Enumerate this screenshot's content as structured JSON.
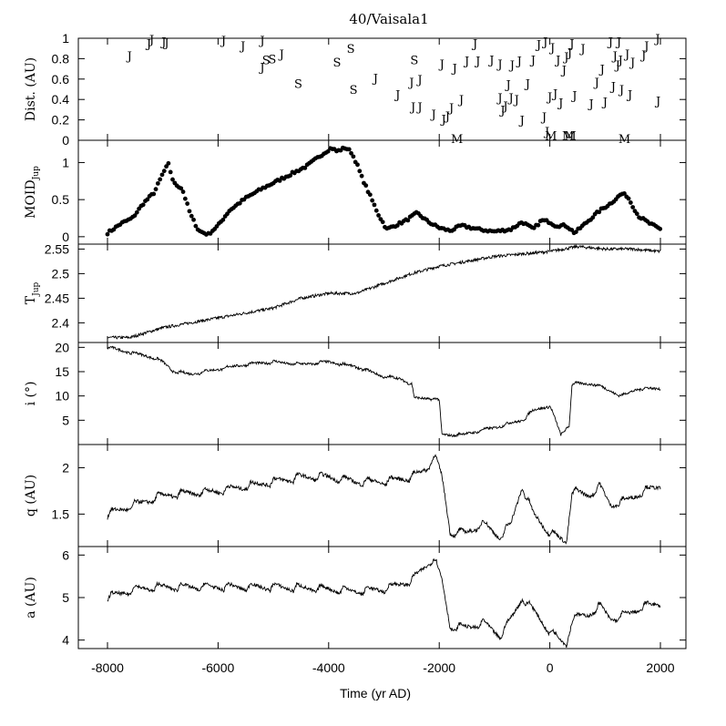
{
  "figure": {
    "title": "40/Vaisala1",
    "xlabel": "Time (yr AD)",
    "xticks": [
      -8000,
      -6000,
      -4000,
      -2000,
      0,
      2000
    ]
  },
  "chart_data": [
    {
      "type": "scatter",
      "name": "encounters",
      "ylabel": "Dist. (AU)",
      "ylim": [
        0,
        1
      ],
      "yticks": [
        0,
        0.2,
        0.4,
        0.6,
        0.8,
        1
      ],
      "xlim": [
        -8000,
        2000
      ],
      "points": [
        {
          "x": -7600,
          "y": 0.83,
          "label": "J"
        },
        {
          "x": -7250,
          "y": 0.95,
          "label": "J"
        },
        {
          "x": -7200,
          "y": 0.99,
          "label": "J"
        },
        {
          "x": -6980,
          "y": 0.97,
          "label": "J"
        },
        {
          "x": -6930,
          "y": 0.96,
          "label": "J"
        },
        {
          "x": -5900,
          "y": 0.98,
          "label": "J"
        },
        {
          "x": -5550,
          "y": 0.93,
          "label": "J"
        },
        {
          "x": -5200,
          "y": 0.98,
          "label": "J"
        },
        {
          "x": -5200,
          "y": 0.72,
          "label": "J"
        },
        {
          "x": -5130,
          "y": 0.79,
          "label": "S"
        },
        {
          "x": -5020,
          "y": 0.8,
          "label": "S"
        },
        {
          "x": -4850,
          "y": 0.85,
          "label": "J"
        },
        {
          "x": -4550,
          "y": 0.56,
          "label": "S"
        },
        {
          "x": -3850,
          "y": 0.77,
          "label": "S"
        },
        {
          "x": -3600,
          "y": 0.9,
          "label": "S"
        },
        {
          "x": -3550,
          "y": 0.5,
          "label": "S"
        },
        {
          "x": -3150,
          "y": 0.61,
          "label": "J"
        },
        {
          "x": -2750,
          "y": 0.45,
          "label": "J"
        },
        {
          "x": -2500,
          "y": 0.57,
          "label": "J"
        },
        {
          "x": -2470,
          "y": 0.33,
          "label": "J"
        },
        {
          "x": -2450,
          "y": 0.79,
          "label": "S"
        },
        {
          "x": -2350,
          "y": 0.33,
          "label": "J"
        },
        {
          "x": -2350,
          "y": 0.6,
          "label": "J"
        },
        {
          "x": -2100,
          "y": 0.26,
          "label": "J"
        },
        {
          "x": -1950,
          "y": 0.75,
          "label": "J"
        },
        {
          "x": -1920,
          "y": 0.21,
          "label": "J"
        },
        {
          "x": -1850,
          "y": 0.24,
          "label": "J"
        },
        {
          "x": -1780,
          "y": 0.32,
          "label": "J"
        },
        {
          "x": -1720,
          "y": 0.71,
          "label": "J"
        },
        {
          "x": -1680,
          "y": 0.02,
          "label": "M"
        },
        {
          "x": -1600,
          "y": 0.4,
          "label": "J"
        },
        {
          "x": -1500,
          "y": 0.78,
          "label": "J"
        },
        {
          "x": -1350,
          "y": 0.95,
          "label": "J"
        },
        {
          "x": -1300,
          "y": 0.78,
          "label": "J"
        },
        {
          "x": -1050,
          "y": 0.79,
          "label": "J"
        },
        {
          "x": -900,
          "y": 0.75,
          "label": "J"
        },
        {
          "x": -900,
          "y": 0.42,
          "label": "J"
        },
        {
          "x": -850,
          "y": 0.3,
          "label": "J"
        },
        {
          "x": -800,
          "y": 0.34,
          "label": "J"
        },
        {
          "x": -750,
          "y": 0.55,
          "label": "J"
        },
        {
          "x": -700,
          "y": 0.42,
          "label": "J"
        },
        {
          "x": -680,
          "y": 0.74,
          "label": "J"
        },
        {
          "x": -600,
          "y": 0.4,
          "label": "J"
        },
        {
          "x": -550,
          "y": 0.78,
          "label": "J"
        },
        {
          "x": -500,
          "y": 0.2,
          "label": "J"
        },
        {
          "x": -400,
          "y": 0.56,
          "label": "J"
        },
        {
          "x": -300,
          "y": 0.79,
          "label": "J"
        },
        {
          "x": -200,
          "y": 0.94,
          "label": "J"
        },
        {
          "x": -100,
          "y": 0.23,
          "label": "J"
        },
        {
          "x": -80,
          "y": 0.97,
          "label": "J"
        },
        {
          "x": -50,
          "y": 0.09,
          "label": "J"
        },
        {
          "x": 0,
          "y": 0.43,
          "label": "J"
        },
        {
          "x": 20,
          "y": 0.05,
          "label": "M"
        },
        {
          "x": 50,
          "y": 0.91,
          "label": "J"
        },
        {
          "x": 100,
          "y": 0.46,
          "label": "J"
        },
        {
          "x": 150,
          "y": 0.79,
          "label": "J"
        },
        {
          "x": 200,
          "y": 0.37,
          "label": "J"
        },
        {
          "x": 260,
          "y": 0.69,
          "label": "J"
        },
        {
          "x": 300,
          "y": 0.82,
          "label": "J"
        },
        {
          "x": 330,
          "y": 0.05,
          "label": "M"
        },
        {
          "x": 360,
          "y": 0.86,
          "label": "J"
        },
        {
          "x": 370,
          "y": 0.05,
          "label": "M"
        },
        {
          "x": 400,
          "y": 0.95,
          "label": "J"
        },
        {
          "x": 450,
          "y": 0.44,
          "label": "J"
        },
        {
          "x": 600,
          "y": 0.9,
          "label": "J"
        },
        {
          "x": 750,
          "y": 0.36,
          "label": "J"
        },
        {
          "x": 850,
          "y": 0.57,
          "label": "J"
        },
        {
          "x": 950,
          "y": 0.7,
          "label": "J"
        },
        {
          "x": 1000,
          "y": 0.38,
          "label": "J"
        },
        {
          "x": 1100,
          "y": 0.97,
          "label": "J"
        },
        {
          "x": 1150,
          "y": 0.53,
          "label": "J"
        },
        {
          "x": 1180,
          "y": 0.83,
          "label": "J"
        },
        {
          "x": 1230,
          "y": 0.74,
          "label": "J"
        },
        {
          "x": 1250,
          "y": 0.97,
          "label": "J"
        },
        {
          "x": 1280,
          "y": 0.79,
          "label": "J"
        },
        {
          "x": 1300,
          "y": 0.5,
          "label": "J"
        },
        {
          "x": 1350,
          "y": 0.02,
          "label": "M"
        },
        {
          "x": 1400,
          "y": 0.85,
          "label": "J"
        },
        {
          "x": 1450,
          "y": 0.45,
          "label": "J"
        },
        {
          "x": 1500,
          "y": 0.77,
          "label": "J"
        },
        {
          "x": 1700,
          "y": 0.84,
          "label": "J"
        },
        {
          "x": 1750,
          "y": 0.93,
          "label": "J"
        },
        {
          "x": 1950,
          "y": 1.0,
          "label": "J"
        },
        {
          "x": 1960,
          "y": 0.39,
          "label": "J"
        }
      ]
    },
    {
      "type": "scatter",
      "name": "moid",
      "ylabel": "MOID",
      "ylabel_sub": "Jup",
      "ylim": [
        -0.1,
        1.3
      ],
      "yticks": [
        0,
        0.5,
        1
      ],
      "xlim": [
        -8000,
        2000
      ],
      "keypoints": [
        [
          -8000,
          0.05
        ],
        [
          -7900,
          0.1
        ],
        [
          -7750,
          0.18
        ],
        [
          -7550,
          0.25
        ],
        [
          -7350,
          0.45
        ],
        [
          -7150,
          0.6
        ],
        [
          -7000,
          0.85
        ],
        [
          -6900,
          0.98
        ],
        [
          -6800,
          0.72
        ],
        [
          -6650,
          0.65
        ],
        [
          -6500,
          0.3
        ],
        [
          -6350,
          0.08
        ],
        [
          -6180,
          0.03
        ],
        [
          -6000,
          0.15
        ],
        [
          -5800,
          0.35
        ],
        [
          -5500,
          0.52
        ],
        [
          -5200,
          0.65
        ],
        [
          -4800,
          0.8
        ],
        [
          -4400,
          0.95
        ],
        [
          -4100,
          1.12
        ],
        [
          -3950,
          1.2
        ],
        [
          -3850,
          1.15
        ],
        [
          -3700,
          1.2
        ],
        [
          -3600,
          1.15
        ],
        [
          -3500,
          1.0
        ],
        [
          -3400,
          0.8
        ],
        [
          -3250,
          0.55
        ],
        [
          -3100,
          0.3
        ],
        [
          -2950,
          0.1
        ],
        [
          -2800,
          0.15
        ],
        [
          -2600,
          0.22
        ],
        [
          -2400,
          0.32
        ],
        [
          -2200,
          0.2
        ],
        [
          -2000,
          0.12
        ],
        [
          -1800,
          0.08
        ],
        [
          -1600,
          0.15
        ],
        [
          -1300,
          0.1
        ],
        [
          -1000,
          0.07
        ],
        [
          -700,
          0.1
        ],
        [
          -500,
          0.2
        ],
        [
          -300,
          0.1
        ],
        [
          -150,
          0.22
        ],
        [
          0,
          0.2
        ],
        [
          100,
          0.15
        ],
        [
          300,
          0.15
        ],
        [
          450,
          0.05
        ],
        [
          600,
          0.15
        ],
        [
          900,
          0.35
        ],
        [
          1100,
          0.45
        ],
        [
          1300,
          0.58
        ],
        [
          1400,
          0.55
        ],
        [
          1600,
          0.28
        ],
        [
          1800,
          0.18
        ],
        [
          2000,
          0.1
        ]
      ]
    },
    {
      "type": "line",
      "name": "tisserand",
      "ylabel": "T",
      "ylabel_sub": "Jup",
      "ylim": [
        2.36,
        2.56
      ],
      "yticks": [
        2.4,
        2.45,
        2.5,
        2.55
      ],
      "xlim": [
        -8000,
        2000
      ],
      "keypoints": [
        [
          -8000,
          2.37
        ],
        [
          -7600,
          2.37
        ],
        [
          -7000,
          2.39
        ],
        [
          -6000,
          2.41
        ],
        [
          -5000,
          2.43
        ],
        [
          -4500,
          2.45
        ],
        [
          -4000,
          2.46
        ],
        [
          -3500,
          2.46
        ],
        [
          -3000,
          2.48
        ],
        [
          -2500,
          2.5
        ],
        [
          -2000,
          2.515
        ],
        [
          -1500,
          2.525
        ],
        [
          -1000,
          2.535
        ],
        [
          -500,
          2.54
        ],
        [
          0,
          2.545
        ],
        [
          500,
          2.555
        ],
        [
          1000,
          2.55
        ],
        [
          1500,
          2.55
        ],
        [
          2000,
          2.545
        ]
      ]
    },
    {
      "type": "line",
      "name": "inclination",
      "ylabel": "i (°)",
      "ylim": [
        0,
        21
      ],
      "yticks": [
        5,
        10,
        15,
        20
      ],
      "xlim": [
        -8000,
        2000
      ],
      "keypoints": [
        [
          -8000,
          20.0
        ],
        [
          -7600,
          19.0
        ],
        [
          -7200,
          18.0
        ],
        [
          -7000,
          17.0
        ],
        [
          -6800,
          15.0
        ],
        [
          -6500,
          14.5
        ],
        [
          -6000,
          15.5
        ],
        [
          -5500,
          16.5
        ],
        [
          -5000,
          17.0
        ],
        [
          -4500,
          16.5
        ],
        [
          -4000,
          17.0
        ],
        [
          -3500,
          16.0
        ],
        [
          -3000,
          14.0
        ],
        [
          -2700,
          13.5
        ],
        [
          -2500,
          12.5
        ],
        [
          -2450,
          9.5
        ],
        [
          -2100,
          9.5
        ],
        [
          -2000,
          9.0
        ],
        [
          -1950,
          2.0
        ],
        [
          -1600,
          2.0
        ],
        [
          -1000,
          3.5
        ],
        [
          -500,
          5.0
        ],
        [
          -300,
          7.0
        ],
        [
          0,
          8.0
        ],
        [
          200,
          2.0
        ],
        [
          350,
          4.0
        ],
        [
          400,
          12.5
        ],
        [
          800,
          12.5
        ],
        [
          1100,
          11.0
        ],
        [
          1300,
          10.0
        ],
        [
          1600,
          11.5
        ],
        [
          2000,
          11.5
        ]
      ]
    },
    {
      "type": "line",
      "name": "perihelion",
      "ylabel": "q (AU)",
      "ylim": [
        1.15,
        2.25
      ],
      "yticks": [
        1.5,
        2
      ],
      "xlim": [
        -8000,
        2000
      ],
      "keypoints": [
        [
          -8000,
          1.5
        ],
        [
          -7500,
          1.6
        ],
        [
          -7000,
          1.7
        ],
        [
          -6000,
          1.75
        ],
        [
          -5500,
          1.8
        ],
        [
          -5000,
          1.85
        ],
        [
          -4500,
          1.9
        ],
        [
          -4000,
          1.9
        ],
        [
          -3500,
          1.85
        ],
        [
          -3000,
          1.85
        ],
        [
          -2500,
          1.9
        ],
        [
          -2200,
          2.0
        ],
        [
          -2100,
          2.15
        ],
        [
          -1950,
          1.9
        ],
        [
          -1800,
          1.3
        ],
        [
          -1500,
          1.3
        ],
        [
          -1200,
          1.4
        ],
        [
          -900,
          1.25
        ],
        [
          -700,
          1.4
        ],
        [
          -500,
          1.8
        ],
        [
          -300,
          1.5
        ],
        [
          0,
          1.3
        ],
        [
          300,
          1.2
        ],
        [
          400,
          1.75
        ],
        [
          700,
          1.7
        ],
        [
          900,
          1.8
        ],
        [
          1100,
          1.6
        ],
        [
          1400,
          1.65
        ],
        [
          1700,
          1.75
        ],
        [
          2000,
          1.8
        ]
      ]
    },
    {
      "type": "line",
      "name": "semimajor",
      "ylabel": "a (AU)",
      "ylim": [
        3.8,
        6.2
      ],
      "yticks": [
        4,
        5,
        6
      ],
      "xlim": [
        -8000,
        2000
      ],
      "keypoints": [
        [
          -8000,
          5.0
        ],
        [
          -7500,
          5.2
        ],
        [
          -7000,
          5.25
        ],
        [
          -6000,
          5.25
        ],
        [
          -5000,
          5.25
        ],
        [
          -4000,
          5.2
        ],
        [
          -3500,
          5.15
        ],
        [
          -3000,
          5.2
        ],
        [
          -2500,
          5.4
        ],
        [
          -2200,
          5.8
        ],
        [
          -2100,
          5.95
        ],
        [
          -1950,
          5.4
        ],
        [
          -1800,
          4.3
        ],
        [
          -1500,
          4.3
        ],
        [
          -1200,
          4.4
        ],
        [
          -900,
          4.1
        ],
        [
          -700,
          4.5
        ],
        [
          -500,
          5.0
        ],
        [
          -300,
          4.7
        ],
        [
          0,
          4.2
        ],
        [
          300,
          3.9
        ],
        [
          400,
          4.5
        ],
        [
          700,
          4.6
        ],
        [
          900,
          4.8
        ],
        [
          1100,
          4.5
        ],
        [
          1400,
          4.6
        ],
        [
          1700,
          4.8
        ],
        [
          2000,
          4.85
        ]
      ]
    }
  ]
}
